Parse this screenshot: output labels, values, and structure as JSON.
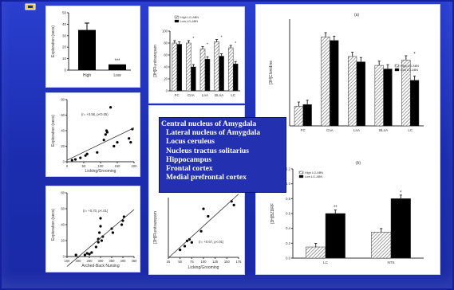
{
  "slide": {
    "caption": [
      "Central nucleus of Amygdala",
      "Lateral nucleus of Amygdala",
      "Locus ceruleus",
      "Nucleus tractus solitarius",
      "Hippocampus",
      "Frontal cortex",
      "Medial prefrontal cortex"
    ]
  },
  "chart_data": [
    {
      "type": "bar",
      "ylabel": "Exploration (secs)",
      "categories": [
        "High",
        "Low"
      ],
      "values": [
        35,
        5
      ],
      "annotation": "***",
      "ylim": [
        0,
        50
      ],
      "yticks": [
        "0",
        "10",
        "20",
        "30",
        "40",
        "50"
      ]
    },
    {
      "type": "scatter",
      "ylabel": "Exploration (secs)",
      "xlabel": "Licking/Grooming",
      "annotation": "(r= +0.56, p<0.05)",
      "xlim": [
        0,
        200
      ],
      "ylim": [
        0,
        80
      ],
      "xticks": [
        "0",
        "50",
        "100",
        "150",
        "200"
      ],
      "yticks": [
        "0",
        "20",
        "40",
        "60",
        "80"
      ],
      "points": [
        [
          15,
          2
        ],
        [
          25,
          3
        ],
        [
          40,
          5
        ],
        [
          55,
          8
        ],
        [
          60,
          10
        ],
        [
          90,
          12
        ],
        [
          110,
          28
        ],
        [
          115,
          35
        ],
        [
          118,
          40
        ],
        [
          120,
          38
        ],
        [
          130,
          70
        ],
        [
          140,
          20
        ],
        [
          150,
          25
        ],
        [
          185,
          30
        ],
        [
          190,
          25
        ],
        [
          195,
          42
        ]
      ]
    },
    {
      "type": "scatter",
      "ylabel": "Exploration (secs)",
      "xlabel": "Arched-Back Nursing",
      "annotation": "(r= +0.70, p<.01)",
      "xlim": [
        150,
        450
      ],
      "ylim": [
        0,
        80
      ],
      "xticks": [
        "150",
        "200",
        "250",
        "300",
        "350",
        "400",
        "450"
      ],
      "yticks": [
        "0",
        "20",
        "40",
        "60",
        "80"
      ],
      "points": [
        [
          190,
          2
        ],
        [
          230,
          2
        ],
        [
          240,
          4
        ],
        [
          250,
          3
        ],
        [
          260,
          5
        ],
        [
          280,
          12
        ],
        [
          290,
          18
        ],
        [
          290,
          22
        ],
        [
          295,
          30
        ],
        [
          300,
          38
        ],
        [
          300,
          48
        ],
        [
          305,
          20
        ],
        [
          310,
          25
        ],
        [
          350,
          35
        ],
        [
          355,
          30
        ],
        [
          395,
          40
        ],
        [
          400,
          45
        ],
        [
          405,
          50
        ]
      ]
    },
    {
      "type": "bar",
      "ylabel": "[3H]Flunitrazepam",
      "legend": [
        "High LG-ABN",
        "Low LG-ABN"
      ],
      "categories": [
        "FC",
        "CnA",
        "LnA",
        "BLnA",
        "LC"
      ],
      "series": [
        {
          "name": "High LG-ABN",
          "values": [
            80,
            80,
            70,
            82,
            72
          ]
        },
        {
          "name": "Low LG-ABN",
          "values": [
            78,
            40,
            53,
            58,
            45
          ]
        }
      ],
      "annotations": [
        "",
        "*",
        "*",
        "*",
        "*"
      ],
      "ylim": [
        0,
        100
      ],
      "yticks": [
        "0",
        "20",
        "40",
        "60",
        "80",
        "100"
      ]
    },
    {
      "type": "scatter",
      "ylabel": "[3H]Flunitrazepam",
      "xlabel": "Licking/Grooming",
      "annotation": "(r= +0.67, p<.01)",
      "xlim": [
        25,
        175
      ],
      "ylim": [
        20,
        100
      ],
      "xticks": [
        "25",
        "50",
        "75",
        "100",
        "125",
        "150",
        "175"
      ],
      "points": [
        [
          50,
          30
        ],
        [
          60,
          35
        ],
        [
          65,
          42
        ],
        [
          70,
          44
        ],
        [
          75,
          40
        ],
        [
          95,
          55
        ],
        [
          100,
          85
        ],
        [
          110,
          75
        ],
        [
          160,
          95
        ],
        [
          165,
          90
        ]
      ]
    },
    {
      "type": "bar",
      "title": "(a)",
      "ylabel": "[3H]Clonidine",
      "legend": [
        "High LG-ABN",
        "Low LG-ABN"
      ],
      "categories": [
        "FC",
        "CnA",
        "LnA",
        "BLnA",
        "LC"
      ],
      "series": [
        {
          "name": "High LG-ABN",
          "values": [
            55,
            250,
            195,
            170,
            185
          ]
        },
        {
          "name": "Low LG-ABN",
          "values": [
            60,
            240,
            180,
            160,
            128
          ]
        }
      ],
      "annotations": [
        "",
        "",
        "",
        "",
        "*"
      ],
      "ylim": [
        0,
        300
      ]
    },
    {
      "type": "bar",
      "title": "(b)",
      "ylabel": "[3H]BZDRF",
      "legend": [
        "High LG-ABN",
        "Low LG-ABN"
      ],
      "categories": [
        "LC",
        "NTS"
      ],
      "series": [
        {
          "name": "High LG-ABN",
          "values": [
            0.15,
            0.35
          ]
        },
        {
          "name": "Low LG-ABN",
          "values": [
            0.6,
            0.8
          ]
        }
      ],
      "annotations": [
        "**",
        "*"
      ],
      "ylim": [
        0,
        1.2
      ],
      "yticks": [
        "0.0",
        "0.2",
        "0.4",
        "0.6",
        "0.8",
        "1.0",
        "1.2"
      ]
    }
  ]
}
